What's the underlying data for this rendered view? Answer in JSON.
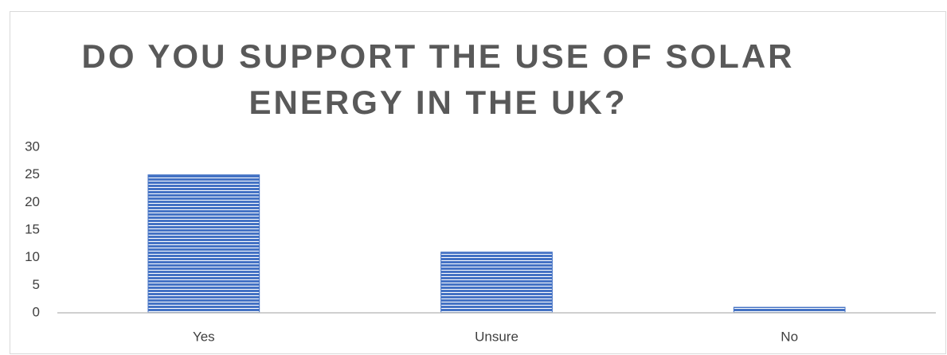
{
  "chart_data": {
    "type": "bar",
    "title": "DO YOU SUPPORT THE USE OF SOLAR ENERGY IN THE UK?",
    "categories": [
      "Yes",
      "Unsure",
      "No"
    ],
    "values": [
      25,
      11,
      1
    ],
    "color": "#4472c4",
    "ylim": [
      0,
      30
    ],
    "yticks": [
      0,
      5,
      10,
      15,
      20,
      25,
      30
    ],
    "grid": false
  }
}
